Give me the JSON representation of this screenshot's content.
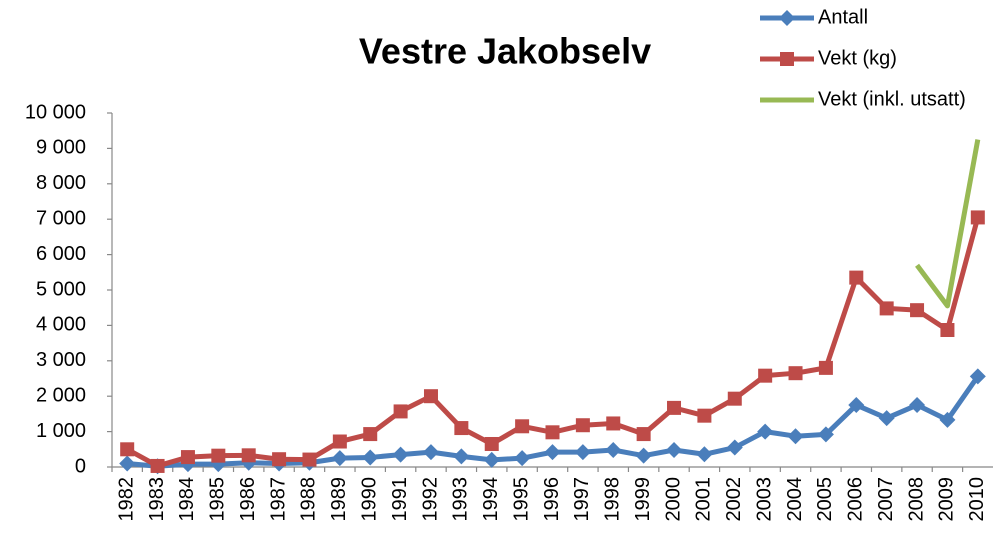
{
  "chart_data": {
    "type": "line",
    "title": "Vestre Jakobselv",
    "categories": [
      "1982",
      "1983",
      "1984",
      "1985",
      "1986",
      "1987",
      "1988",
      "1989",
      "1990",
      "1991",
      "1992",
      "1993",
      "1994",
      "1995",
      "1996",
      "1997",
      "1998",
      "1999",
      "2000",
      "2001",
      "2002",
      "2003",
      "2004",
      "2005",
      "2006",
      "2007",
      "2008",
      "2009",
      "2010"
    ],
    "series": [
      {
        "name": "Antall",
        "color": "#4a7ebb",
        "marker": "diamond",
        "values": [
          100,
          20,
          80,
          80,
          120,
          100,
          120,
          250,
          270,
          350,
          420,
          300,
          200,
          250,
          420,
          420,
          480,
          320,
          480,
          360,
          550,
          1000,
          870,
          920,
          1750,
          1380,
          1750,
          1330,
          2560
        ]
      },
      {
        "name": "Vekt (kg)",
        "color": "#be4b48",
        "marker": "square",
        "values": [
          500,
          30,
          280,
          320,
          330,
          220,
          210,
          720,
          930,
          1570,
          2000,
          1100,
          650,
          1150,
          980,
          1180,
          1230,
          930,
          1670,
          1450,
          1930,
          2580,
          2650,
          2800,
          5350,
          4480,
          4430,
          3870,
          7050
        ]
      },
      {
        "name": "Vekt (inkl. utsatt)",
        "color": "#98b954",
        "marker": null,
        "values": [
          null,
          null,
          null,
          null,
          null,
          null,
          null,
          null,
          null,
          null,
          null,
          null,
          null,
          null,
          null,
          null,
          null,
          null,
          null,
          null,
          null,
          null,
          null,
          null,
          null,
          null,
          5700,
          4550,
          9250
        ]
      }
    ],
    "ylim": [
      0,
      10000
    ],
    "yticks": [
      0,
      {
        "value": 1000,
        "label": "1 000"
      },
      {
        "value": 2000,
        "label": "2 000"
      },
      {
        "value": 3000,
        "label": "3 000"
      },
      {
        "value": 4000,
        "label": "4 000"
      },
      {
        "value": 5000,
        "label": "5 000"
      },
      {
        "value": 6000,
        "label": "6 000"
      },
      {
        "value": 7000,
        "label": "7 000"
      },
      {
        "value": 8000,
        "label": "8 000"
      },
      {
        "value": 9000,
        "label": "9 000"
      },
      {
        "value": 10000,
        "label": "10 000"
      }
    ],
    "grid": false,
    "legend": "top-right"
  }
}
